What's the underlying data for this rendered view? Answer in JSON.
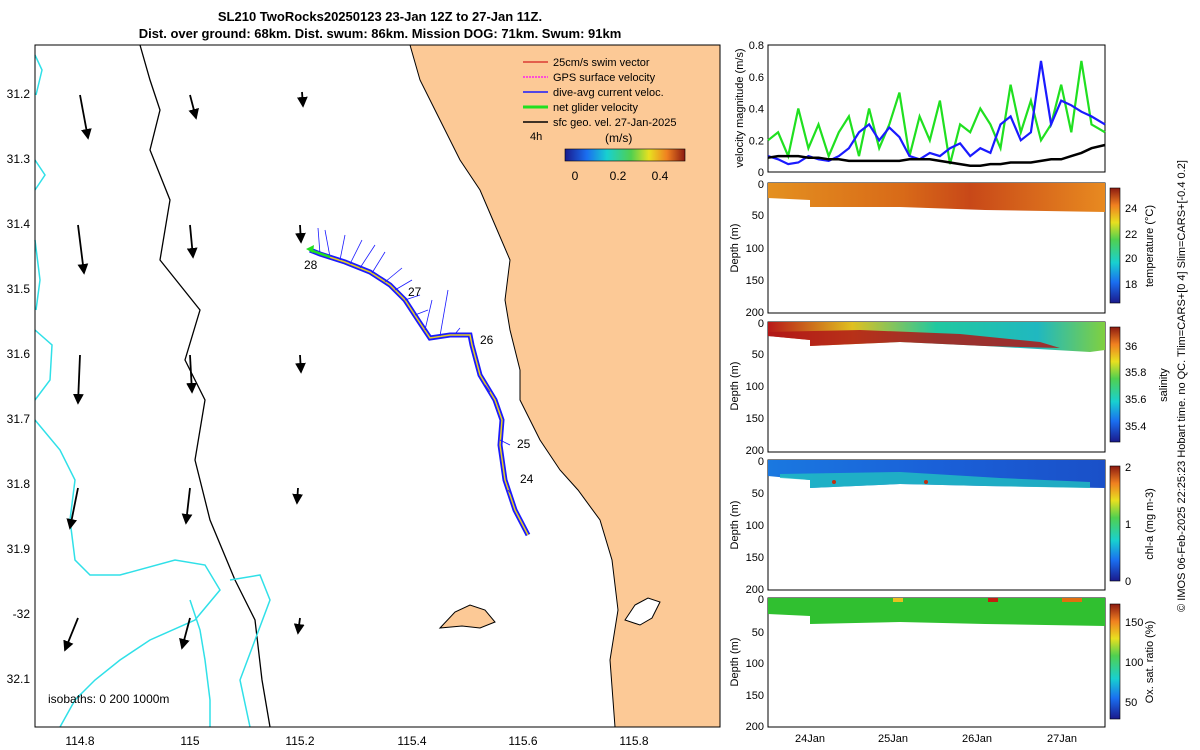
{
  "title": {
    "line1": "SL210 TwoRocks20250123 23-Jan 12Z to 27-Jan 11Z.",
    "line2": "Dist. over ground: 68km. Dist. swum: 86km. Mission DOG: 71km. Swum: 91km"
  },
  "map": {
    "lon_ticks": [
      "114.8",
      "115",
      "115.2",
      "115.4",
      "115.6",
      "115.8"
    ],
    "lat_ticks": [
      "31.2",
      "31.3",
      "31.4",
      "31.5",
      "31.6",
      "31.7",
      "31.8",
      "31.9",
      "-32",
      "32.1"
    ],
    "legend": [
      {
        "label": "25cm/s swim vector",
        "color": "#d42020"
      },
      {
        "label": "GPS surface velocity",
        "color": "#ff00ff"
      },
      {
        "label": "dive-avg current veloc.",
        "color": "#1a1aff"
      },
      {
        "label": "net glider velocity",
        "color": "#20e020"
      },
      {
        "label": "sfc geo. vel. 27-Jan-2025",
        "color": "#000000"
      }
    ],
    "time_label": "4h",
    "colorbar_title": "(m/s)",
    "colorbar_ticks": [
      "0",
      "0.2",
      "0.4"
    ],
    "day_labels": [
      "28",
      "27",
      "26",
      "25",
      "24"
    ],
    "isobaths": "isobaths: 0   200  1000m",
    "colors": {
      "land": "#fcc996",
      "isobath_cyan": "#30e0e8"
    }
  },
  "side_text": "© IMOS 06-Feb-2025 22:25:23 Hobart time. no QC. Tlim=CARS+[0 4] Slim=CARS+[-0.4 0.2]",
  "time_ticks": [
    "24Jan",
    "25Jan",
    "26Jan",
    "27Jan"
  ],
  "chart_data": [
    {
      "type": "line",
      "ylabel": "velocity magnitude (m/s)",
      "ylim": [
        0,
        0.8
      ],
      "yticks": [
        "0",
        "0.2",
        "0.4",
        "0.6",
        "0.8"
      ],
      "x": [
        0,
        0.03,
        0.06,
        0.09,
        0.12,
        0.15,
        0.18,
        0.21,
        0.24,
        0.27,
        0.3,
        0.33,
        0.36,
        0.39,
        0.42,
        0.45,
        0.48,
        0.51,
        0.54,
        0.57,
        0.6,
        0.63,
        0.66,
        0.69,
        0.72,
        0.75,
        0.78,
        0.81,
        0.84,
        0.87,
        0.9,
        0.93,
        0.96,
        1.0
      ],
      "series": [
        {
          "name": "net glider velocity",
          "color": "#20e020",
          "values": [
            0.2,
            0.25,
            0.1,
            0.4,
            0.15,
            0.3,
            0.1,
            0.25,
            0.35,
            0.1,
            0.4,
            0.15,
            0.3,
            0.5,
            0.1,
            0.35,
            0.2,
            0.45,
            0.05,
            0.3,
            0.25,
            0.4,
            0.3,
            0.15,
            0.55,
            0.25,
            0.45,
            0.2,
            0.3,
            0.55,
            0.25,
            0.7,
            0.3,
            0.25
          ]
        },
        {
          "name": "dive-avg current veloc.",
          "color": "#1a1aff",
          "values": [
            0.1,
            0.08,
            0.05,
            0.06,
            0.1,
            0.08,
            0.07,
            0.1,
            0.15,
            0.25,
            0.3,
            0.2,
            0.28,
            0.22,
            0.1,
            0.08,
            0.12,
            0.1,
            0.15,
            0.18,
            0.1,
            0.15,
            0.12,
            0.3,
            0.35,
            0.2,
            0.25,
            0.7,
            0.3,
            0.45,
            0.42,
            0.38,
            0.35,
            0.3
          ]
        },
        {
          "name": "sfc geo. vel.",
          "color": "#000000",
          "values": [
            0.09,
            0.1,
            0.1,
            0.1,
            0.09,
            0.09,
            0.08,
            0.08,
            0.07,
            0.07,
            0.07,
            0.07,
            0.07,
            0.07,
            0.08,
            0.08,
            0.08,
            0.07,
            0.06,
            0.05,
            0.04,
            0.04,
            0.05,
            0.05,
            0.06,
            0.06,
            0.06,
            0.07,
            0.08,
            0.08,
            0.1,
            0.12,
            0.15,
            0.17
          ]
        }
      ]
    },
    {
      "type": "heatmap",
      "ylabel": "Depth (m)",
      "clabel": "temperature (°C)",
      "yticks": [
        "0",
        "50",
        "100",
        "150",
        "200"
      ],
      "cticks": [
        "24",
        "22",
        "20",
        "18"
      ]
    },
    {
      "type": "heatmap",
      "ylabel": "Depth (m)",
      "clabel": "salinity",
      "yticks": [
        "0",
        "50",
        "100",
        "150",
        "200"
      ],
      "cticks": [
        "36",
        "35.8",
        "35.6",
        "35.4"
      ]
    },
    {
      "type": "heatmap",
      "ylabel": "Depth (m)",
      "clabel": "chl-a (mg m-3)",
      "yticks": [
        "0",
        "50",
        "100",
        "150",
        "200"
      ],
      "cticks": [
        "2",
        "1",
        "0"
      ]
    },
    {
      "type": "heatmap",
      "ylabel": "Depth (m)",
      "clabel": "Ox. sat. ratio (%)",
      "yticks": [
        "0",
        "50",
        "100",
        "150",
        "200"
      ],
      "cticks": [
        "150",
        "100",
        "50"
      ]
    }
  ]
}
